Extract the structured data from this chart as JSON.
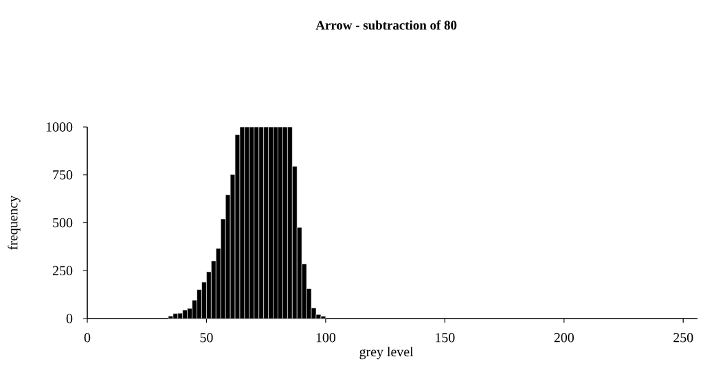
{
  "chart_data": {
    "type": "histogram",
    "title": "**Arrow - subtraction of 80**",
    "xlabel": "grey level",
    "ylabel": "frequency",
    "bins": [
      34,
      36,
      38,
      40,
      42,
      44,
      46,
      48,
      50,
      52,
      54,
      56,
      58,
      60,
      62,
      64,
      66,
      68,
      70,
      72,
      74,
      76,
      78,
      80,
      82,
      84,
      86,
      88,
      90,
      92,
      94,
      96,
      98,
      100
    ],
    "values": [
      13,
      26,
      28,
      44,
      53,
      96,
      151,
      190,
      244,
      301,
      366,
      520,
      646,
      752,
      960,
      1000,
      1000,
      1000,
      1000,
      1000,
      1000,
      1000,
      1000,
      1000,
      1000,
      1000,
      795,
      476,
      285,
      156,
      55,
      21,
      12
    ],
    "color": "#000000",
    "xlim": [
      0,
      256
    ],
    "ylim": [
      0,
      1000
    ],
    "xticks": [
      0,
      50,
      100,
      150,
      200,
      250
    ],
    "yticks": [
      0,
      250,
      500,
      750,
      1000
    ]
  }
}
